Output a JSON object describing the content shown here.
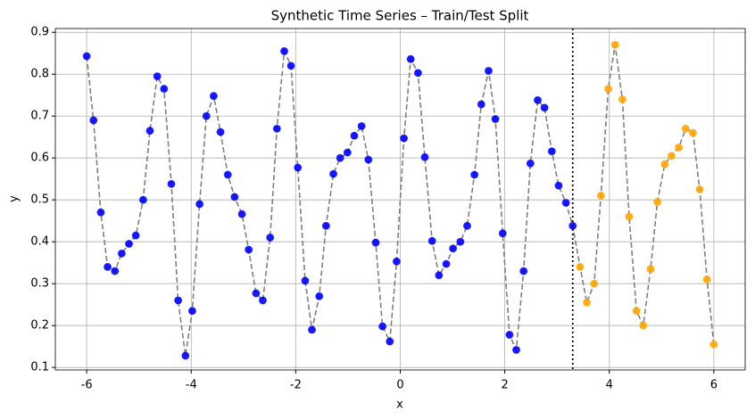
{
  "chart_data": {
    "type": "scatter",
    "title": "Synthetic Time Series – Train/Test Split",
    "xlabel": "x",
    "ylabel": "y",
    "xlim": [
      -6.6,
      6.6
    ],
    "ylim": [
      0.094,
      0.909
    ],
    "xticks": [
      -6,
      -4,
      -2,
      0,
      2,
      4,
      6
    ],
    "yticks": [
      0.1,
      0.2,
      0.3,
      0.4,
      0.5,
      0.6,
      0.7,
      0.8,
      0.9
    ],
    "grid": true,
    "line_color": "#808080",
    "split_x": 3.3,
    "split_color": "#000000",
    "series": [
      {
        "name": "Train",
        "color": "#0000ff",
        "x": [
          -6.0,
          -5.87,
          -5.73,
          -5.6,
          -5.46,
          -5.33,
          -5.19,
          -5.06,
          -4.92,
          -4.79,
          -4.65,
          -4.52,
          -4.38,
          -4.25,
          -4.11,
          -3.98,
          -3.84,
          -3.71,
          -3.57,
          -3.44,
          -3.3,
          -3.17,
          -3.03,
          -2.9,
          -2.76,
          -2.63,
          -2.49,
          -2.36,
          -2.22,
          -2.09,
          -1.96,
          -1.82,
          -1.69,
          -1.55,
          -1.42,
          -1.28,
          -1.15,
          -1.01,
          -0.88,
          -0.74,
          -0.61,
          -0.47,
          -0.34,
          -0.2,
          -0.07,
          0.07,
          0.2,
          0.34,
          0.47,
          0.61,
          0.74,
          0.88,
          1.01,
          1.15,
          1.28,
          1.42,
          1.55,
          1.69,
          1.82,
          1.96,
          2.09,
          2.22,
          2.36,
          2.49,
          2.63,
          2.76,
          2.9,
          3.03,
          3.17,
          3.3
        ],
        "values": [
          0.843,
          0.69,
          0.47,
          0.34,
          0.33,
          0.372,
          0.395,
          0.415,
          0.5,
          0.665,
          0.795,
          0.765,
          0.538,
          0.26,
          0.128,
          0.235,
          0.49,
          0.7,
          0.748,
          0.662,
          0.56,
          0.507,
          0.466,
          0.381,
          0.277,
          0.26,
          0.41,
          0.67,
          0.855,
          0.82,
          0.577,
          0.307,
          0.19,
          0.27,
          0.438,
          0.562,
          0.6,
          0.613,
          0.653,
          0.676,
          0.596,
          0.398,
          0.198,
          0.162,
          0.353,
          0.647,
          0.836,
          0.803,
          0.602,
          0.402,
          0.32,
          0.347,
          0.384,
          0.4,
          0.438,
          0.56,
          0.728,
          0.808,
          0.693,
          0.42,
          0.178,
          0.142,
          0.33,
          0.587,
          0.738,
          0.72,
          0.616,
          0.534,
          0.493,
          0.438
        ]
      },
      {
        "name": "Test",
        "color": "#ffa500",
        "x": [
          3.44,
          3.57,
          3.71,
          3.84,
          3.98,
          4.11,
          4.25,
          4.38,
          4.52,
          4.65,
          4.79,
          4.92,
          5.06,
          5.19,
          5.33,
          5.46,
          5.6,
          5.73,
          5.87,
          6.0
        ],
        "values": [
          0.34,
          0.255,
          0.3,
          0.51,
          0.765,
          0.87,
          0.74,
          0.46,
          0.235,
          0.2,
          0.335,
          0.495,
          0.585,
          0.605,
          0.625,
          0.67,
          0.66,
          0.525,
          0.31,
          0.155
        ]
      }
    ]
  }
}
